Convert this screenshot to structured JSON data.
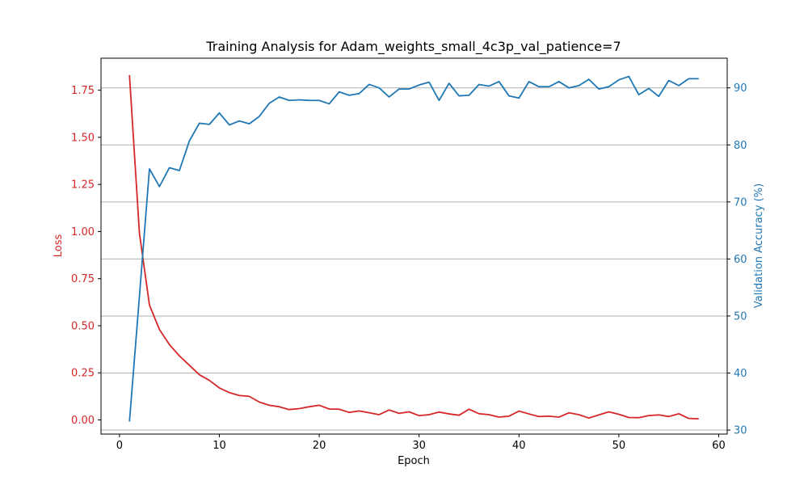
{
  "chart_data": {
    "type": "line",
    "title": "Training Analysis for Adam_weights_small_4c3p_val_patience=7",
    "xlabel": "Epoch",
    "ylabel_left": "Loss",
    "ylabel_right": "Validation Accuracy (%)",
    "xlim": [
      -1.85,
      60.85
    ],
    "ylim_left": [
      -0.075,
      1.92
    ],
    "ylim_right": [
      29.3,
      95.2
    ],
    "xticks": [
      0,
      10,
      20,
      30,
      40,
      50,
      60
    ],
    "yticks_left": [
      0.0,
      0.25,
      0.5,
      0.75,
      1.0,
      1.25,
      1.5,
      1.75
    ],
    "ytick_labels_left": [
      "0.00",
      "0.25",
      "0.50",
      "0.75",
      "1.00",
      "1.25",
      "1.50",
      "1.75"
    ],
    "yticks_right": [
      30,
      40,
      50,
      60,
      70,
      80,
      90
    ],
    "grid": "right-axis horizontal",
    "colors": {
      "loss": "#d62728",
      "accuracy": "#1f77b4",
      "grid": "#b0b0b0"
    },
    "x": [
      1,
      2,
      3,
      4,
      5,
      6,
      7,
      8,
      9,
      10,
      11,
      12,
      13,
      14,
      15,
      16,
      17,
      18,
      19,
      20,
      21,
      22,
      23,
      24,
      25,
      26,
      27,
      28,
      29,
      30,
      31,
      32,
      33,
      34,
      35,
      36,
      37,
      38,
      39,
      40,
      41,
      42,
      43,
      44,
      45,
      46,
      47,
      48,
      49,
      50,
      51,
      52,
      53,
      54,
      55,
      56,
      57,
      58
    ],
    "series": [
      {
        "axis": "left",
        "values": [
          1.83,
          0.99,
          0.61,
          0.48,
          0.4,
          0.34,
          0.29,
          0.24,
          0.21,
          0.17,
          0.145,
          0.13,
          0.125,
          0.095,
          0.078,
          0.07,
          0.055,
          0.06,
          0.07,
          0.078,
          0.058,
          0.057,
          0.04,
          0.048,
          0.038,
          0.028,
          0.053,
          0.035,
          0.043,
          0.023,
          0.028,
          0.042,
          0.032,
          0.025,
          0.057,
          0.033,
          0.028,
          0.015,
          0.02,
          0.047,
          0.032,
          0.018,
          0.02,
          0.015,
          0.038,
          0.028,
          0.01,
          0.027,
          0.043,
          0.03,
          0.013,
          0.012,
          0.023,
          0.027,
          0.018,
          0.033,
          0.008,
          0.006
        ]
      },
      {
        "axis": "right",
        "values": [
          31.5,
          53.5,
          75.8,
          72.7,
          76.0,
          75.5,
          80.7,
          83.8,
          83.6,
          85.6,
          83.5,
          84.2,
          83.7,
          85.0,
          87.3,
          88.4,
          87.8,
          87.9,
          87.8,
          87.8,
          87.2,
          89.3,
          88.7,
          89.0,
          90.6,
          90.0,
          88.4,
          89.8,
          89.8,
          90.5,
          91.0,
          87.8,
          90.8,
          88.6,
          88.7,
          90.6,
          90.3,
          91.1,
          88.6,
          88.2,
          91.1,
          90.2,
          90.2,
          91.1,
          90.0,
          90.4,
          91.5,
          89.8,
          90.2,
          91.4,
          92.0,
          88.8,
          89.9,
          88.5,
          91.3,
          90.4,
          91.6,
          91.6
        ]
      }
    ]
  }
}
